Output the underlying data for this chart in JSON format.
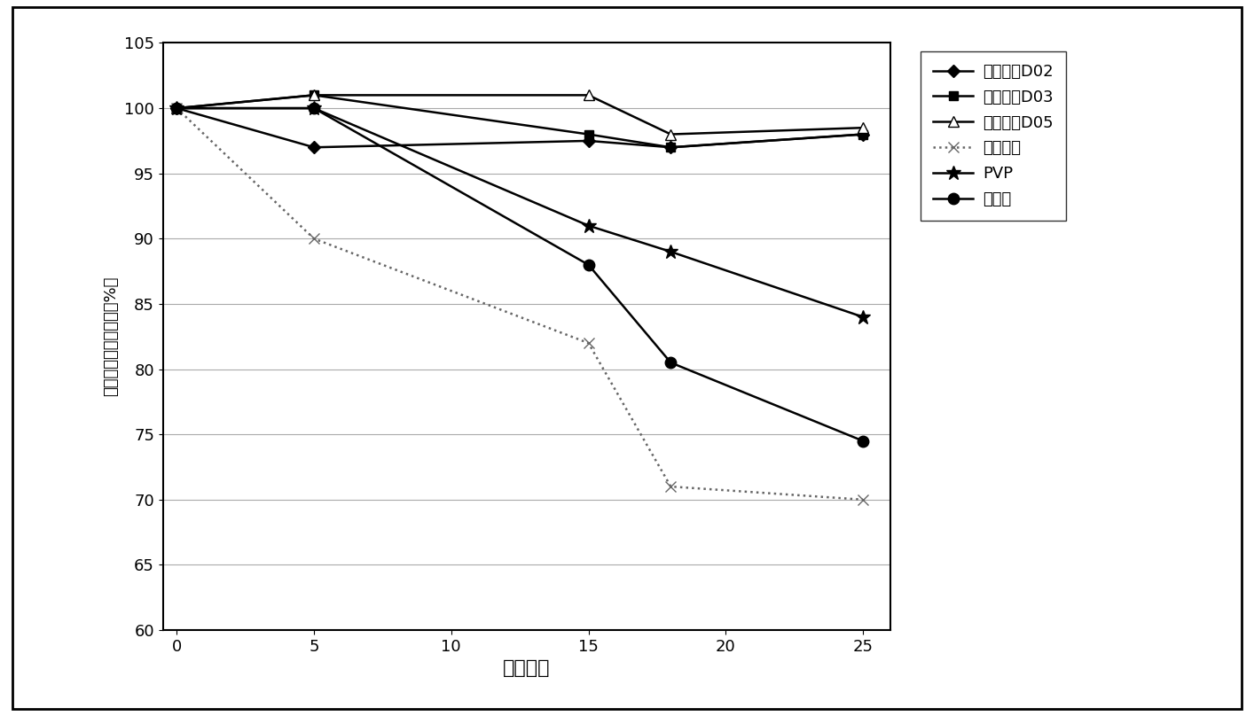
{
  "x": [
    0,
    5,
    15,
    18,
    25
  ],
  "series": [
    {
      "label": "利匯德尔D02",
      "values": [
        100,
        97,
        97.5,
        97,
        98
      ],
      "marker": "D",
      "linestyle": "-",
      "color": "#000000",
      "markersize": 7,
      "markerfacecolor": "#000000"
    },
    {
      "label": "利匯德尔D03",
      "values": [
        100,
        101,
        98,
        97,
        98
      ],
      "marker": "s",
      "linestyle": "-",
      "color": "#000000",
      "markersize": 7,
      "markerfacecolor": "#000000"
    },
    {
      "label": "利匯德尔D05",
      "values": [
        100,
        101,
        101,
        98,
        98.5
      ],
      "marker": "^",
      "linestyle": "-",
      "color": "#000000",
      "markersize": 8,
      "markerfacecolor": "white"
    },
    {
      "label": "支链淠粉",
      "values": [
        100,
        90,
        82,
        71,
        70
      ],
      "marker": "x",
      "linestyle": ":",
      "color": "#666666",
      "markersize": 8,
      "markerfacecolor": "#666666"
    },
    {
      "label": "PVP",
      "values": [
        100,
        100,
        91,
        89,
        84
      ],
      "marker": "*",
      "linestyle": "-",
      "color": "#000000",
      "markersize": 12,
      "markerfacecolor": "#000000"
    },
    {
      "label": "葡聚糖",
      "values": [
        100,
        100,
        88,
        80.5,
        74.5
      ],
      "marker": "o",
      "linestyle": "-",
      "color": "#000000",
      "markersize": 9,
      "markerfacecolor": "#000000"
    }
  ],
  "xlabel": "经过天数",
  "ylabel": "相对于初始値的变化（%）",
  "ylim": [
    60,
    105
  ],
  "xlim": [
    -0.5,
    26
  ],
  "yticks": [
    60,
    65,
    70,
    75,
    80,
    85,
    90,
    95,
    100,
    105
  ],
  "xticks": [
    0,
    5,
    10,
    15,
    20,
    25
  ],
  "background_color": "#ffffff",
  "grid": true,
  "outer_border": true
}
